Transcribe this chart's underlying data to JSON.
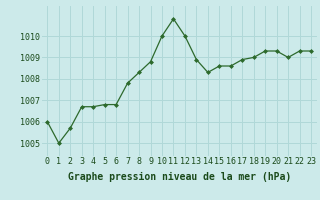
{
  "x": [
    0,
    1,
    2,
    3,
    4,
    5,
    6,
    7,
    8,
    9,
    10,
    11,
    12,
    13,
    14,
    15,
    16,
    17,
    18,
    19,
    20,
    21,
    22,
    23
  ],
  "y": [
    1006.0,
    1005.0,
    1005.7,
    1006.7,
    1006.7,
    1006.8,
    1006.8,
    1007.8,
    1008.3,
    1008.8,
    1010.0,
    1010.8,
    1010.0,
    1008.9,
    1008.3,
    1008.6,
    1008.6,
    1008.9,
    1009.0,
    1009.3,
    1009.3,
    1009.0,
    1009.3,
    1009.3
  ],
  "line_color": "#2d6a2d",
  "marker": "D",
  "marker_size": 2.0,
  "bg_color": "#cceaea",
  "grid_color": "#b0d8d8",
  "xlabel": "Graphe pression niveau de la mer (hPa)",
  "xlabel_fontsize": 7,
  "xlabel_color": "#1a4a1a",
  "ytick_labels": [
    "1005",
    "1006",
    "1007",
    "1008",
    "1009",
    "1010"
  ],
  "ytick_values": [
    1005,
    1006,
    1007,
    1008,
    1009,
    1010
  ],
  "xtick_labels": [
    "0",
    "1",
    "2",
    "3",
    "4",
    "5",
    "6",
    "7",
    "8",
    "9",
    "10",
    "11",
    "12",
    "13",
    "14",
    "15",
    "16",
    "17",
    "18",
    "19",
    "20",
    "21",
    "22",
    "23"
  ],
  "ylim": [
    1004.4,
    1011.4
  ],
  "xlim": [
    -0.5,
    23.5
  ],
  "tick_fontsize": 6,
  "tick_color": "#1a4a1a"
}
